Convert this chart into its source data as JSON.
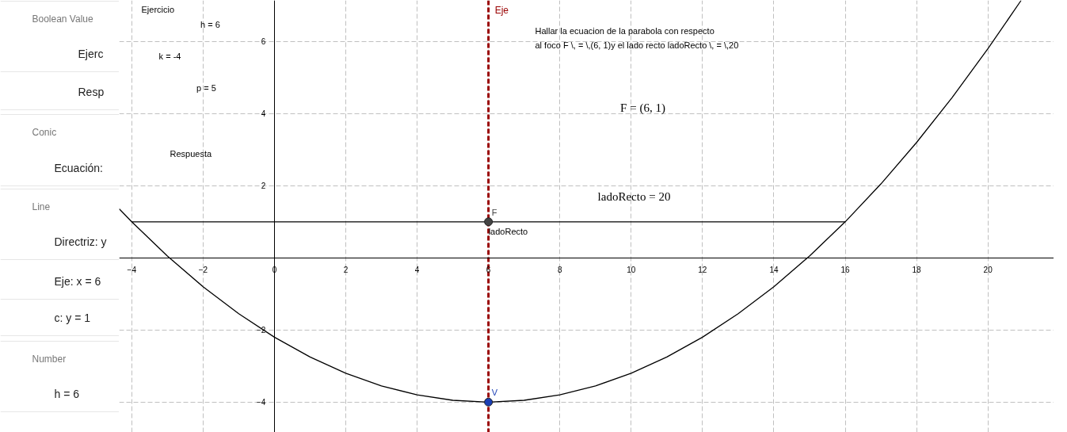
{
  "chart_data": [
    {
      "type": "other",
      "annotations": [
        "Boolean Value",
        "Ejerc",
        "Resp",
        "Conic",
        "Ecuación:",
        "Line",
        "Directriz: y",
        "Eje: x = 6",
        "c: y = 1",
        "Number",
        "h = 6"
      ]
    },
    {
      "type": "line",
      "xlim": [
        -4.35,
        21.85
      ],
      "ylim": [
        -4.84,
        7.14
      ],
      "xticks": [
        {
          "value": -4,
          "label": "−4"
        },
        {
          "value": -2,
          "label": "−2"
        },
        0,
        2,
        4,
        6,
        8,
        10,
        12,
        14,
        16,
        18,
        20
      ],
      "yticks": [
        {
          "value": -4,
          "label": "−4"
        },
        {
          "value": -2,
          "label": "−2"
        },
        2,
        4,
        6
      ],
      "grid": true,
      "series": [
        {
          "type": "line",
          "color": "#000000",
          "x": [
            -4.35,
            -4,
            -3,
            -2,
            -1,
            0,
            1,
            2,
            3,
            4,
            5,
            6,
            7,
            8,
            9,
            10,
            11,
            12,
            13,
            14,
            15,
            16,
            17,
            18,
            19,
            20,
            20.93
          ],
          "values": [
            1.36,
            1,
            0.05,
            -0.8,
            -1.55,
            -2.2,
            -2.75,
            -3.2,
            -3.55,
            -3.8,
            -3.95,
            -4,
            -3.95,
            -3.8,
            -3.55,
            -3.2,
            -2.75,
            -2.2,
            -1.55,
            -0.8,
            0.05,
            1,
            2.05,
            3.2,
            4.45,
            5.8,
            7.14
          ]
        },
        {
          "type": "line",
          "name": "ladoRecto",
          "color": "#000000",
          "x": [
            -4,
            6,
            16
          ],
          "values": [
            1,
            1,
            1
          ]
        },
        {
          "type": "scatter",
          "name": "F",
          "color": "#444444",
          "x": [
            6
          ],
          "values": [
            1
          ]
        },
        {
          "type": "scatter",
          "name": "V",
          "color": "#1a3fb5",
          "x": [
            6
          ],
          "values": [
            -4
          ]
        }
      ],
      "ref_lines": [
        {
          "axis": "x",
          "value": 6,
          "label": "Eje",
          "color": "#990000",
          "line_style": "dashed"
        }
      ],
      "annotations": [
        "Ejercicio",
        "h = 6",
        "k = -4",
        "p = 5",
        "Respuesta",
        "Hallar la ecuacion de la  parabola con respecto",
        "al foco F \\, = \\,(6, 1)y el lado recto ladoRecto \\, = \\,20",
        "F = (6, 1)",
        "ladoRecto = 20"
      ]
    }
  ]
}
